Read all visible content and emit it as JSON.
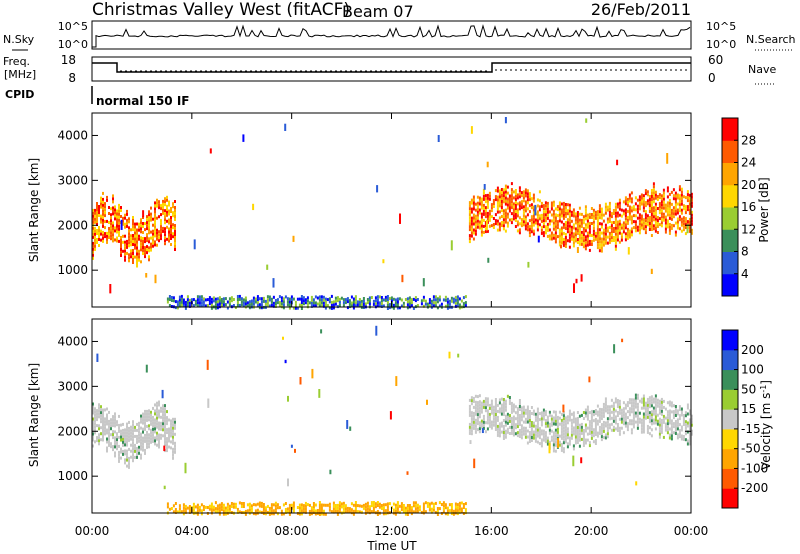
{
  "header": {
    "station": "Christmas Valley West (fitACF)",
    "beam": "Beam 07",
    "date": "26/Feb/2011"
  },
  "noise_panel": {
    "left_label": "N.Sky",
    "right_label": "N.Search",
    "left_ticks": [
      "10^5",
      "10^0"
    ],
    "right_ticks": [
      "10^5",
      "10^0"
    ]
  },
  "freq_panel": {
    "left_label_1": "Freq.",
    "left_label_2": "[MHz]",
    "right_label": "Nave",
    "left_ticks": [
      "18",
      "8"
    ],
    "right_ticks": [
      "60",
      "0"
    ]
  },
  "cpid": {
    "label": "CPID",
    "mode": "normal 150 IF"
  },
  "time_axis": {
    "label": "Time UT",
    "ticks": [
      "00:00",
      "04:00",
      "08:00",
      "12:00",
      "16:00",
      "20:00",
      "00:00"
    ]
  },
  "chart_data": [
    {
      "type": "heatmap",
      "name": "power",
      "ylabel": "Slant Range [km]",
      "xlim": [
        0,
        24
      ],
      "ylim": [
        180,
        4500
      ],
      "y_ticks": [
        "1000",
        "2000",
        "3000",
        "4000"
      ],
      "colorbar_label": "Power [dB]",
      "colorbar_ticks": [
        "28",
        "24",
        "20",
        "16",
        "12",
        "8",
        "4"
      ],
      "colors": [
        "#0000ff",
        "#2a5bd7",
        "#3a8f5a",
        "#9acd32",
        "#ffd700",
        "#ffa500",
        "#ff5a00",
        "#ff0000"
      ],
      "regions": [
        {
          "x": [
            0.0,
            3.3
          ],
          "y": [
            1000,
            3000
          ],
          "level": "strong"
        },
        {
          "x": [
            15.1,
            24.0
          ],
          "y": [
            1300,
            3200
          ],
          "level": "strong"
        },
        {
          "x": [
            3.0,
            15.0
          ],
          "y": [
            180,
            450
          ],
          "level": "weak"
        }
      ]
    },
    {
      "type": "heatmap",
      "name": "velocity",
      "ylabel": "Slant Range [km]",
      "xlim": [
        0,
        24
      ],
      "ylim": [
        180,
        4500
      ],
      "y_ticks": [
        "1000",
        "2000",
        "3000",
        "4000"
      ],
      "colorbar_label": "Velocity [m s",
      "colorbar_label_sup": "-1",
      "colorbar_label_end": "]",
      "colorbar_ticks": [
        "200",
        "100",
        "50",
        "15",
        "-15",
        "-50",
        "-100",
        "-200"
      ],
      "colors": [
        "#ff0000",
        "#ff5a00",
        "#ffa500",
        "#ffd700",
        "#c8c8c8",
        "#9acd32",
        "#3a8f5a",
        "#2a5bd7",
        "#0000ff"
      ],
      "regions": [
        {
          "x": [
            0.0,
            3.3
          ],
          "y": [
            1100,
            3000
          ],
          "level": "ground"
        },
        {
          "x": [
            15.1,
            24.0
          ],
          "y": [
            1500,
            3100
          ],
          "level": "ground"
        },
        {
          "x": [
            3.0,
            15.0
          ],
          "y": [
            180,
            450
          ],
          "level": "slow"
        }
      ]
    }
  ]
}
